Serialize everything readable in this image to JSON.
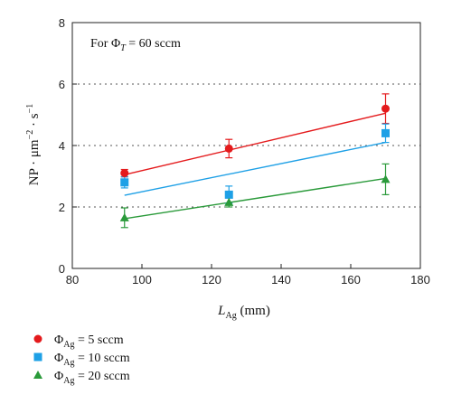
{
  "chart_data": {
    "type": "scatter",
    "xlim": [
      80,
      180
    ],
    "ylim": [
      0,
      8
    ],
    "x_ticks": [
      80,
      100,
      120,
      140,
      160,
      180
    ],
    "y_ticks": [
      0,
      2,
      4,
      6,
      8
    ],
    "xlabel": {
      "main": "L",
      "sub": "Ag",
      "rest": " (mm)"
    },
    "ylabel": {
      "base": "NP · μm",
      "exp1": "−2",
      "mid": " · s",
      "exp2": "−1"
    },
    "annotation": {
      "prefix": "For Φ",
      "sub": "T",
      "rest": " = 60 sccm"
    },
    "grid": {
      "horizontal_dotted_at": [
        2,
        4,
        6
      ]
    },
    "legend_placement": "bottom-left",
    "series": [
      {
        "name": {
          "base": "Φ",
          "sub": "Ag",
          "rest": " = 5 sccm"
        },
        "color": "#e41a1c",
        "marker": "circle",
        "x": [
          95,
          125,
          170
        ],
        "y": [
          3.1,
          3.9,
          5.2
        ],
        "err": [
          0.12,
          0.3,
          0.48
        ],
        "fit": {
          "x": [
            95,
            170
          ],
          "y": [
            3.05,
            5.05
          ]
        }
      },
      {
        "name": {
          "base": "Φ",
          "sub": "Ag",
          "rest": " = 10 sccm"
        },
        "color": "#1ea0e6",
        "marker": "square",
        "x": [
          95,
          125,
          170
        ],
        "y": [
          2.8,
          2.4,
          4.4
        ],
        "err": [
          0.18,
          0.28,
          0.3
        ],
        "fit": {
          "x": [
            95,
            170
          ],
          "y": [
            2.38,
            4.1
          ]
        }
      },
      {
        "name": {
          "base": "Φ",
          "sub": "Ag",
          "rest": " = 20 sccm"
        },
        "color": "#2a9a3a",
        "marker": "triangle",
        "x": [
          95,
          125,
          170
        ],
        "y": [
          1.65,
          2.15,
          2.9
        ],
        "err": [
          0.32,
          0.15,
          0.5
        ],
        "fit": {
          "x": [
            95,
            170
          ],
          "y": [
            1.62,
            2.93
          ]
        }
      }
    ]
  }
}
